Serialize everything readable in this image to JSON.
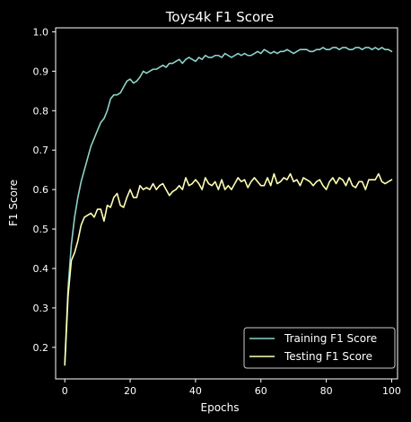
{
  "chart_data": {
    "type": "line",
    "title": "Toys4k F1 Score",
    "xlabel": "Epochs",
    "ylabel": "F1 Score",
    "xlim": [
      -2.8,
      101.8
    ],
    "ylim": [
      0.12,
      1.01
    ],
    "xticks": [
      0,
      20,
      40,
      60,
      80,
      100
    ],
    "yticks": [
      0.2,
      0.3,
      0.4,
      0.5,
      0.6,
      0.7,
      0.8,
      0.9,
      1.0
    ],
    "ytick_labels": [
      "0.2",
      "0.3",
      "0.4",
      "0.5",
      "0.6",
      "0.7",
      "0.8",
      "0.9",
      "1.0"
    ],
    "legend_position": "lower-right",
    "grid": false,
    "background": "#000000",
    "x": [
      0,
      1,
      2,
      3,
      4,
      5,
      6,
      7,
      8,
      9,
      10,
      11,
      12,
      13,
      14,
      15,
      16,
      17,
      18,
      19,
      20,
      21,
      22,
      23,
      24,
      25,
      26,
      27,
      28,
      29,
      30,
      31,
      32,
      33,
      34,
      35,
      36,
      37,
      38,
      39,
      40,
      41,
      42,
      43,
      44,
      45,
      46,
      47,
      48,
      49,
      50,
      51,
      52,
      53,
      54,
      55,
      56,
      57,
      58,
      59,
      60,
      61,
      62,
      63,
      64,
      65,
      66,
      67,
      68,
      69,
      70,
      71,
      72,
      73,
      74,
      75,
      76,
      77,
      78,
      79,
      80,
      81,
      82,
      83,
      84,
      85,
      86,
      87,
      88,
      89,
      90,
      91,
      92,
      93,
      94,
      95,
      96,
      97,
      98,
      99,
      100
    ],
    "series": [
      {
        "name": "Training F1 Score",
        "color": "#8dd3c7",
        "values": [
          0.16,
          0.35,
          0.46,
          0.53,
          0.58,
          0.62,
          0.65,
          0.68,
          0.71,
          0.73,
          0.75,
          0.77,
          0.78,
          0.8,
          0.83,
          0.84,
          0.84,
          0.845,
          0.86,
          0.875,
          0.88,
          0.87,
          0.875,
          0.885,
          0.9,
          0.895,
          0.9,
          0.905,
          0.905,
          0.91,
          0.915,
          0.91,
          0.92,
          0.92,
          0.925,
          0.93,
          0.92,
          0.93,
          0.935,
          0.93,
          0.925,
          0.935,
          0.93,
          0.94,
          0.935,
          0.935,
          0.94,
          0.94,
          0.935,
          0.945,
          0.94,
          0.935,
          0.94,
          0.945,
          0.94,
          0.945,
          0.94,
          0.94,
          0.945,
          0.95,
          0.945,
          0.955,
          0.95,
          0.945,
          0.95,
          0.945,
          0.95,
          0.95,
          0.955,
          0.95,
          0.945,
          0.95,
          0.955,
          0.955,
          0.955,
          0.95,
          0.95,
          0.955,
          0.955,
          0.96,
          0.955,
          0.955,
          0.96,
          0.96,
          0.955,
          0.96,
          0.96,
          0.955,
          0.955,
          0.96,
          0.96,
          0.955,
          0.96,
          0.96,
          0.955,
          0.96,
          0.955,
          0.96,
          0.955,
          0.955,
          0.95
        ]
      },
      {
        "name": "Testing F1 Score",
        "color": "#ffffb3",
        "values": [
          0.155,
          0.33,
          0.42,
          0.44,
          0.47,
          0.51,
          0.53,
          0.535,
          0.54,
          0.53,
          0.55,
          0.55,
          0.52,
          0.56,
          0.555,
          0.58,
          0.59,
          0.56,
          0.555,
          0.58,
          0.6,
          0.58,
          0.58,
          0.61,
          0.6,
          0.605,
          0.6,
          0.615,
          0.6,
          0.61,
          0.615,
          0.6,
          0.585,
          0.595,
          0.6,
          0.61,
          0.6,
          0.63,
          0.61,
          0.615,
          0.625,
          0.615,
          0.6,
          0.63,
          0.615,
          0.61,
          0.62,
          0.6,
          0.625,
          0.6,
          0.61,
          0.6,
          0.615,
          0.63,
          0.62,
          0.625,
          0.605,
          0.62,
          0.63,
          0.62,
          0.61,
          0.61,
          0.63,
          0.61,
          0.64,
          0.615,
          0.62,
          0.63,
          0.625,
          0.64,
          0.62,
          0.625,
          0.61,
          0.63,
          0.625,
          0.62,
          0.61,
          0.62,
          0.625,
          0.61,
          0.6,
          0.62,
          0.63,
          0.615,
          0.63,
          0.625,
          0.61,
          0.63,
          0.61,
          0.605,
          0.62,
          0.62,
          0.6,
          0.625,
          0.625,
          0.625,
          0.64,
          0.62,
          0.615,
          0.62,
          0.625
        ]
      }
    ]
  }
}
